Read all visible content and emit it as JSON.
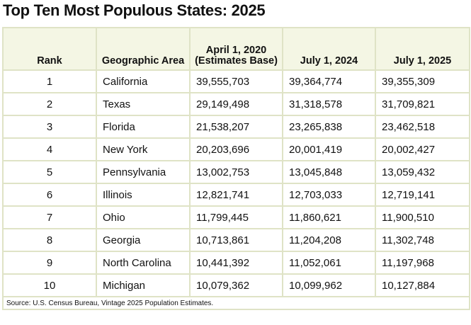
{
  "title": "Top Ten Most Populous States: 2025",
  "table": {
    "header": [
      "Rank",
      "Geographic Area",
      "April 1, 2020 (Estimates Base)",
      "July 1, 2024",
      "July 1, 2025"
    ],
    "rows": [
      [
        "1",
        "California",
        "39,555,703",
        "39,364,774",
        "39,355,309"
      ],
      [
        "2",
        "Texas",
        "29,149,498",
        "31,318,578",
        "31,709,821"
      ],
      [
        "3",
        "Florida",
        "21,538,207",
        "23,265,838",
        "23,462,518"
      ],
      [
        "4",
        "New York",
        "20,203,696",
        "20,001,419",
        "20,002,427"
      ],
      [
        "5",
        "Pennsylvania",
        "13,002,753",
        "13,045,848",
        "13,059,432"
      ],
      [
        "6",
        "Illinois",
        "12,821,741",
        "12,703,033",
        "12,719,141"
      ],
      [
        "7",
        "Ohio",
        "11,799,445",
        "11,860,621",
        "11,900,510"
      ],
      [
        "8",
        "Georgia",
        "10,713,861",
        "11,204,208",
        "11,302,748"
      ],
      [
        "9",
        "North Carolina",
        "10,441,392",
        "11,052,061",
        "11,197,968"
      ],
      [
        "10",
        "Michigan",
        "10,079,362",
        "10,099,962",
        "10,127,884"
      ]
    ],
    "source": "Source: U.S. Census Bureau, Vintage 2025 Population Estimates."
  }
}
